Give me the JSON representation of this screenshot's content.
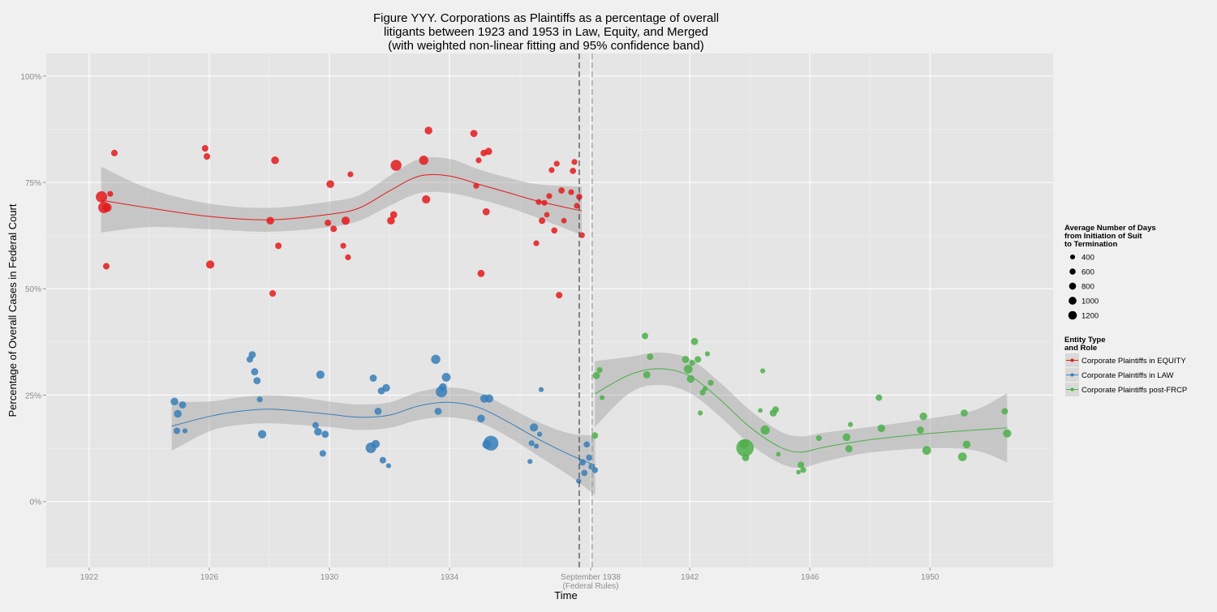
{
  "chart_data": {
    "type": "scatter",
    "title": [
      "Figure YYY. Corporations as Plaintiffs as a percentage of overall",
      "litigants between 1923 and 1953 in Law, Equity, and Merged",
      "(with weighted non-linear fitting and 95% confidence band)"
    ],
    "xlabel": "Time",
    "ylabel": "Percentage of Overall Cases in Federal Court",
    "xlim": [
      1920.57,
      1954.1
    ],
    "ylim": [
      -15.5,
      105.3
    ],
    "x_ticks": [
      {
        "value": 1922,
        "label": "1922"
      },
      {
        "value": 1926,
        "label": "1926"
      },
      {
        "value": 1930,
        "label": "1930"
      },
      {
        "value": 1934,
        "label": "1934"
      },
      {
        "value": 1938.7,
        "label": "September 1938",
        "label2": "(Federal Rules)"
      },
      {
        "value": 1942,
        "label": "1942"
      },
      {
        "value": 1946,
        "label": "1946"
      },
      {
        "value": 1950,
        "label": "1950"
      }
    ],
    "y_ticks": [
      {
        "value": 0,
        "label": "0%"
      },
      {
        "value": 25,
        "label": "25%"
      },
      {
        "value": 50,
        "label": "50%"
      },
      {
        "value": 75,
        "label": "75%"
      },
      {
        "value": 100,
        "label": "100%"
      }
    ],
    "grid": true,
    "vlines": [
      {
        "x": 1938.32,
        "color": "#444444",
        "style": "dashed"
      },
      {
        "x": 1938.75,
        "color": "#999999",
        "style": "dashed"
      }
    ],
    "size_legend": {
      "title": [
        "Average Number of Days",
        " from Initiation of Suit",
        " to Termination"
      ],
      "values": [
        400,
        600,
        800,
        1000,
        1200
      ]
    },
    "color_legend": {
      "title": [
        "Entity Type",
        " and Role"
      ],
      "placement": "right"
    },
    "series": [
      {
        "name": "Corporate Plaintiffs in EQUITY",
        "color": "#E41A1C",
        "points": [
          [
            1922.41,
            71.6,
            1500
          ],
          [
            1922.49,
            69.1,
            1500
          ],
          [
            1922.6,
            69.1,
            900
          ],
          [
            1922.7,
            72.3,
            400
          ],
          [
            1922.84,
            81.9,
            500
          ],
          [
            1922.57,
            55.3,
            500
          ],
          [
            1925.86,
            83.0,
            500
          ],
          [
            1925.92,
            81.1,
            500
          ],
          [
            1926.03,
            55.7,
            800
          ],
          [
            1928.19,
            80.2,
            700
          ],
          [
            1928.03,
            66.0,
            700
          ],
          [
            1928.11,
            48.9,
            500
          ],
          [
            1928.3,
            60.1,
            500
          ],
          [
            1930.03,
            74.6,
            700
          ],
          [
            1929.95,
            65.5,
            500
          ],
          [
            1930.14,
            64.1,
            500
          ],
          [
            1930.7,
            76.9,
            400
          ],
          [
            1930.54,
            66.0,
            800
          ],
          [
            1930.46,
            60.1,
            400
          ],
          [
            1930.62,
            57.4,
            400
          ],
          [
            1932.22,
            79.0,
            1400
          ],
          [
            1932.14,
            67.4,
            600
          ],
          [
            1932.05,
            66.0,
            700
          ],
          [
            1933.14,
            80.2,
            1000
          ],
          [
            1933.22,
            71.0,
            800
          ],
          [
            1933.3,
            87.2,
            700
          ],
          [
            1934.81,
            86.5,
            600
          ],
          [
            1934.97,
            80.2,
            400
          ],
          [
            1934.89,
            74.2,
            400
          ],
          [
            1935.14,
            81.9,
            500
          ],
          [
            1935.3,
            82.3,
            600
          ],
          [
            1935.22,
            68.1,
            600
          ],
          [
            1935.05,
            53.6,
            600
          ],
          [
            1936.89,
            60.7,
            400
          ],
          [
            1936.97,
            70.4,
            400
          ],
          [
            1937.08,
            66.0,
            500
          ],
          [
            1937.16,
            70.2,
            400
          ],
          [
            1937.32,
            71.8,
            400
          ],
          [
            1937.24,
            67.4,
            350
          ],
          [
            1937.4,
            77.9,
            400
          ],
          [
            1937.57,
            79.4,
            400
          ],
          [
            1937.49,
            63.7,
            450
          ],
          [
            1937.73,
            73.1,
            450
          ],
          [
            1937.81,
            66.0,
            350
          ],
          [
            1937.65,
            48.5,
            500
          ],
          [
            1938.05,
            72.7,
            400
          ],
          [
            1938.11,
            77.7,
            450
          ],
          [
            1938.16,
            79.8,
            400
          ],
          [
            1938.24,
            69.5,
            400
          ],
          [
            1938.32,
            71.6,
            450
          ],
          [
            1938.41,
            62.6,
            400
          ]
        ],
        "fit": [
          [
            1922.4,
            70.8
          ],
          [
            1924,
            69
          ],
          [
            1926,
            67
          ],
          [
            1928,
            66.2
          ],
          [
            1930,
            67.5
          ],
          [
            1931,
            69
          ],
          [
            1932,
            73
          ],
          [
            1933,
            76.5
          ],
          [
            1934,
            76.5
          ],
          [
            1935,
            74.5
          ],
          [
            1936,
            72.5
          ],
          [
            1937,
            70.5
          ],
          [
            1938.4,
            68.3
          ]
        ],
        "band": [
          [
            1922.4,
            78.7,
            63.2
          ],
          [
            1924,
            73.5,
            64.5
          ],
          [
            1926,
            70,
            64
          ],
          [
            1928,
            69,
            63.4
          ],
          [
            1930,
            70.5,
            64.5
          ],
          [
            1931,
            72,
            66
          ],
          [
            1932,
            76.5,
            69.5
          ],
          [
            1933,
            80.5,
            72.5
          ],
          [
            1934,
            80.5,
            72.5
          ],
          [
            1935,
            78,
            71
          ],
          [
            1936,
            76,
            69
          ],
          [
            1937,
            74.5,
            66.5
          ],
          [
            1938.4,
            74,
            62.6
          ]
        ]
      },
      {
        "name": "Corporate Plaintiffs in LAW",
        "color": "#377EB8",
        "points": [
          [
            1924.84,
            23.5,
            700
          ],
          [
            1924.95,
            20.6,
            700
          ],
          [
            1925.11,
            22.7,
            600
          ],
          [
            1924.92,
            16.6,
            500
          ],
          [
            1925.19,
            16.6,
            300
          ],
          [
            1927.43,
            34.5,
            600
          ],
          [
            1927.35,
            33.4,
            500
          ],
          [
            1927.51,
            30.5,
            600
          ],
          [
            1927.59,
            28.4,
            600
          ],
          [
            1927.68,
            24.0,
            400
          ],
          [
            1927.76,
            15.8,
            800
          ],
          [
            1929.7,
            29.8,
            800
          ],
          [
            1929.54,
            17.9,
            500
          ],
          [
            1929.62,
            16.4,
            700
          ],
          [
            1929.86,
            15.8,
            600
          ],
          [
            1929.78,
            11.3,
            500
          ],
          [
            1931.46,
            29.0,
            600
          ],
          [
            1931.62,
            21.2,
            600
          ],
          [
            1931.73,
            26.0,
            600
          ],
          [
            1931.89,
            26.7,
            700
          ],
          [
            1931.54,
            13.5,
            800
          ],
          [
            1931.38,
            12.6,
            1300
          ],
          [
            1931.78,
            9.7,
            500
          ],
          [
            1931.97,
            8.4,
            300
          ],
          [
            1933.54,
            33.4,
            1000
          ],
          [
            1933.73,
            25.8,
            1500
          ],
          [
            1933.78,
            26.9,
            700
          ],
          [
            1933.89,
            29.2,
            900
          ],
          [
            1933.62,
            21.2,
            600
          ],
          [
            1935.05,
            19.5,
            700
          ],
          [
            1935.16,
            24.2,
            800
          ],
          [
            1935.32,
            24.2,
            800
          ],
          [
            1935.38,
            13.7,
            2600
          ],
          [
            1935.24,
            13.4,
            900
          ],
          [
            1936.68,
            9.4,
            300
          ],
          [
            1936.73,
            13.7,
            400
          ],
          [
            1936.81,
            17.4,
            800
          ],
          [
            1936.89,
            13.0,
            300
          ],
          [
            1937.0,
            15.8,
            300
          ],
          [
            1937.05,
            26.3,
            300
          ],
          [
            1938.3,
            4.8,
            300
          ],
          [
            1938.43,
            9.2,
            500
          ],
          [
            1938.49,
            6.7,
            450
          ],
          [
            1938.57,
            13.4,
            450
          ],
          [
            1938.65,
            10.3,
            450
          ],
          [
            1938.73,
            8.2,
            450
          ],
          [
            1938.84,
            7.4,
            450
          ]
        ],
        "fit": [
          [
            1924.75,
            17.7
          ],
          [
            1926,
            20.0
          ],
          [
            1927,
            21.2
          ],
          [
            1928,
            21.7
          ],
          [
            1929,
            21.2
          ],
          [
            1930,
            20.5
          ],
          [
            1931,
            19.8
          ],
          [
            1932,
            20.3
          ],
          [
            1933,
            22.5
          ],
          [
            1934,
            23.3
          ],
          [
            1935,
            22.0
          ],
          [
            1936,
            18.5
          ],
          [
            1937,
            14.5
          ],
          [
            1938,
            11.0
          ],
          [
            1938.85,
            8.5
          ]
        ],
        "band": [
          [
            1924.75,
            23.5,
            11.9
          ],
          [
            1926,
            23.5,
            16.5
          ],
          [
            1927,
            24.5,
            18
          ],
          [
            1928,
            25,
            18.4
          ],
          [
            1929,
            24.5,
            18
          ],
          [
            1930,
            23.5,
            17.5
          ],
          [
            1931,
            22.8,
            16.8
          ],
          [
            1932,
            23.3,
            17.3
          ],
          [
            1933,
            25.8,
            19.2
          ],
          [
            1934,
            26.8,
            19.8
          ],
          [
            1935,
            25.5,
            18.5
          ],
          [
            1936,
            22,
            15
          ],
          [
            1937,
            18.5,
            10.5
          ],
          [
            1938,
            16,
            6
          ],
          [
            1938.85,
            15.5,
            1.5
          ]
        ]
      },
      {
        "name": "Corporate Plaintiffs post-FRCP",
        "color": "#4DAF4A",
        "points": [
          [
            1938.84,
            15.5,
            500
          ],
          [
            1938.89,
            29.6,
            600
          ],
          [
            1939.0,
            30.9,
            400
          ],
          [
            1939.08,
            24.4,
            300
          ],
          [
            1940.51,
            38.9,
            500
          ],
          [
            1940.57,
            29.8,
            600
          ],
          [
            1940.68,
            34.0,
            500
          ],
          [
            1941.86,
            33.4,
            600
          ],
          [
            1941.95,
            31.1,
            900
          ],
          [
            1942.03,
            28.8,
            700
          ],
          [
            1942.08,
            32.6,
            400
          ],
          [
            1942.16,
            37.6,
            600
          ],
          [
            1942.27,
            33.4,
            500
          ],
          [
            1942.35,
            20.8,
            300
          ],
          [
            1942.43,
            25.6,
            400
          ],
          [
            1942.51,
            26.5,
            300
          ],
          [
            1942.59,
            34.7,
            300
          ],
          [
            1942.7,
            27.9,
            400
          ],
          [
            1943.84,
            12.6,
            3600
          ],
          [
            1943.81,
            13.5,
            1000
          ],
          [
            1943.86,
            10.3,
            600
          ],
          [
            1944.35,
            21.4,
            250
          ],
          [
            1944.43,
            30.7,
            300
          ],
          [
            1944.51,
            16.8,
            1000
          ],
          [
            1944.78,
            20.8,
            600
          ],
          [
            1944.86,
            21.6,
            500
          ],
          [
            1944.95,
            11.1,
            250
          ],
          [
            1945.62,
            6.9,
            250
          ],
          [
            1945.7,
            8.6,
            500
          ],
          [
            1945.78,
            7.4,
            400
          ],
          [
            1946.3,
            14.9,
            400
          ],
          [
            1947.22,
            15.1,
            700
          ],
          [
            1947.3,
            12.4,
            600
          ],
          [
            1947.35,
            18.1,
            300
          ],
          [
            1948.3,
            24.4,
            500
          ],
          [
            1948.38,
            17.2,
            700
          ],
          [
            1949.68,
            16.8,
            600
          ],
          [
            1949.78,
            20.0,
            700
          ],
          [
            1949.89,
            12.0,
            900
          ],
          [
            1951.08,
            10.5,
            900
          ],
          [
            1951.14,
            20.8,
            600
          ],
          [
            1951.22,
            13.4,
            700
          ],
          [
            1952.49,
            21.2,
            500
          ],
          [
            1952.57,
            16.0,
            800
          ]
        ],
        "fit": [
          [
            1938.84,
            25.3
          ],
          [
            1940,
            29.8
          ],
          [
            1941,
            31.2
          ],
          [
            1942,
            29.5
          ],
          [
            1943,
            24
          ],
          [
            1944,
            17.5
          ],
          [
            1945,
            12.8
          ],
          [
            1945.7,
            11.6
          ],
          [
            1946.5,
            12.8
          ],
          [
            1948,
            14.5
          ],
          [
            1950,
            16
          ],
          [
            1951.5,
            16.8
          ],
          [
            1952.57,
            17.3
          ]
        ],
        "band": [
          [
            1938.84,
            33,
            17.5
          ],
          [
            1940,
            34,
            25.5
          ],
          [
            1941,
            35,
            27.4
          ],
          [
            1942,
            33.5,
            25.5
          ],
          [
            1943,
            28,
            20
          ],
          [
            1944,
            21.5,
            13.5
          ],
          [
            1945,
            16.5,
            9
          ],
          [
            1945.7,
            15.3,
            7.9
          ],
          [
            1946.5,
            16.2,
            9.4
          ],
          [
            1948,
            17.5,
            11.5
          ],
          [
            1950,
            19.5,
            12.5
          ],
          [
            1951.5,
            21.5,
            12
          ],
          [
            1952.57,
            25.5,
            9.2
          ]
        ]
      }
    ]
  }
}
